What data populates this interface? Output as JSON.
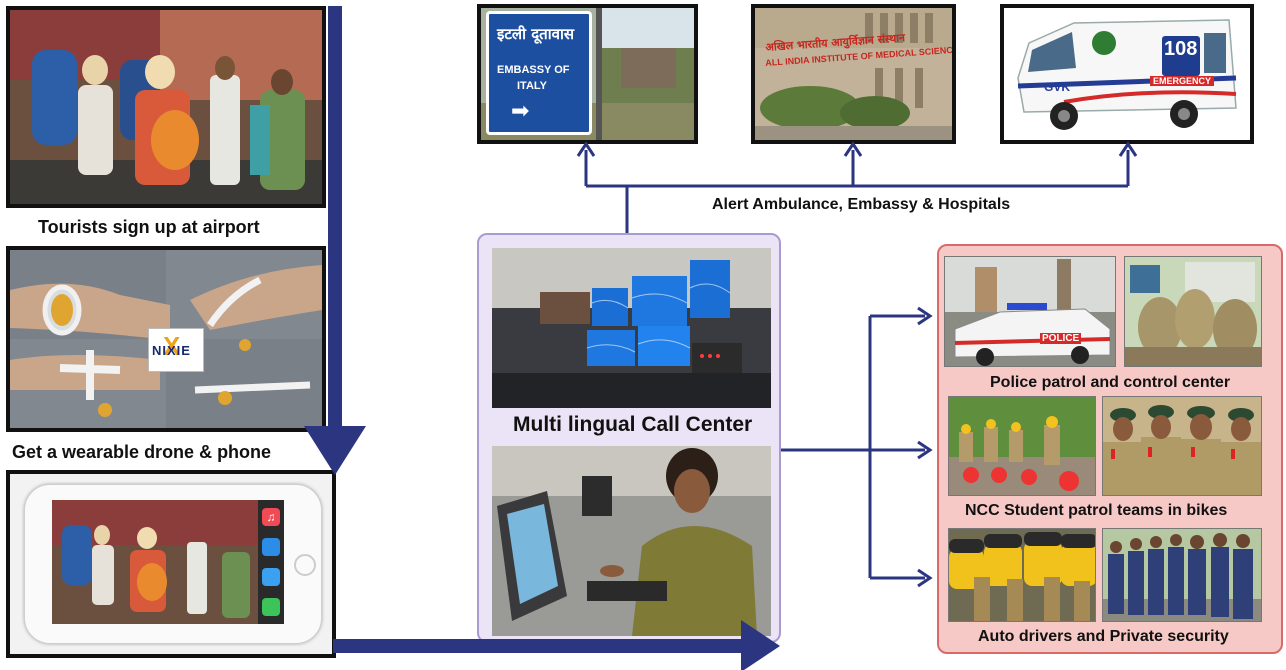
{
  "left_column": {
    "step1_caption": "Tourists sign up at airport",
    "step2_caption": "Get a wearable drone & phone",
    "drone_logo_text": "NIXIE"
  },
  "top_row": {
    "alert_caption": "Alert Ambulance, Embassy & Hospitals",
    "embassy_sign_hindi": "इटली दूतावास",
    "embassy_sign_line1": "EMBASSY OF",
    "embassy_sign_line2": "ITALY",
    "hospital_sign_hindi": "अखिल भारतीय आयुर्विज्ञान संस्थान",
    "hospital_sign_english": "ALL INDIA INSTITUTE OF MEDICAL SCIENCES",
    "ambulance_number": "108",
    "ambulance_brand": "GVK",
    "ambulance_label": "EMERGENCY"
  },
  "center": {
    "call_center_caption": "Multi lingual Call Center"
  },
  "right_panel": {
    "police_caption": "Police patrol and control center",
    "police_car_text": "POLICE",
    "ncc_caption": "NCC Student patrol teams  in bikes",
    "private_caption": "Auto drivers and Private security"
  },
  "colors": {
    "arrow_navy": "#2b3580",
    "center_border": "#a99bd0",
    "center_fill": "#ebe4f6",
    "right_border": "#d86a6a",
    "right_fill": "#f7c9c6"
  }
}
